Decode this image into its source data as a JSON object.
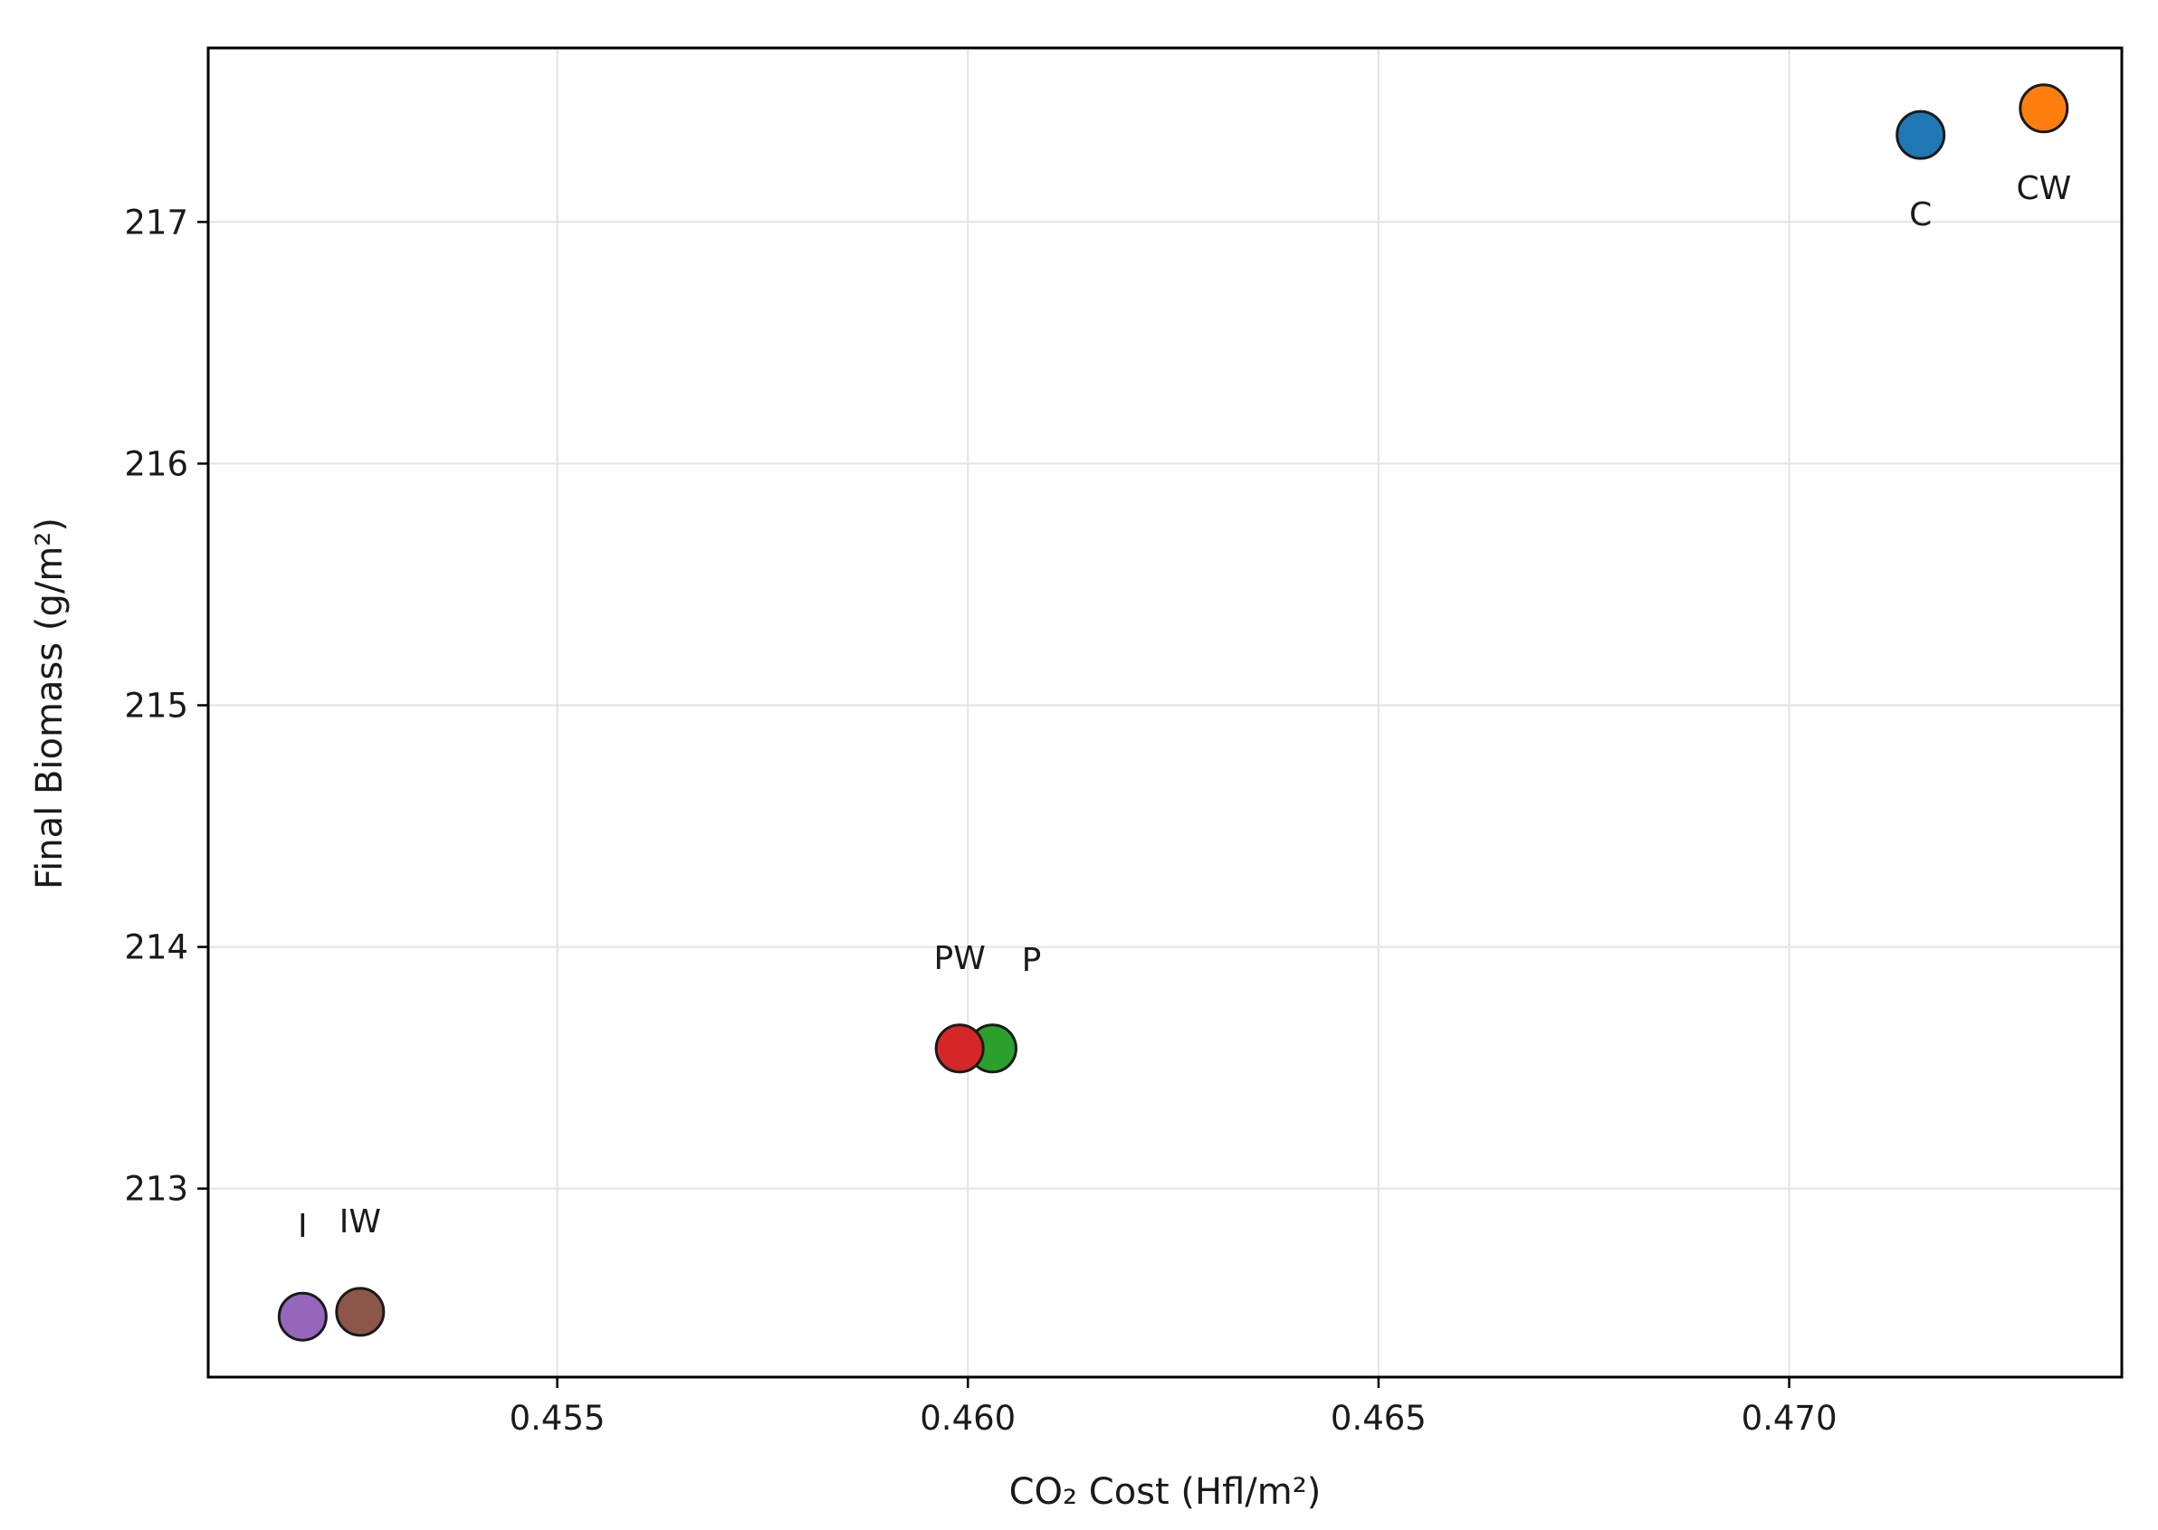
{
  "chart_data": {
    "type": "scatter",
    "xlabel": "CO₂ Cost (Hfl/m²)",
    "ylabel": "Final Biomass (g/m²)",
    "xlim": [
      0.45075,
      0.47405
    ],
    "ylim": [
      212.22,
      217.72
    ],
    "xticks": [
      0.455,
      0.46,
      0.465,
      0.47
    ],
    "xtick_labels": [
      "0.455",
      "0.460",
      "0.465",
      "0.470"
    ],
    "yticks": [
      213,
      214,
      215,
      216,
      217
    ],
    "ytick_labels": [
      "213",
      "214",
      "215",
      "216",
      "217"
    ],
    "grid": true,
    "points": [
      {
        "label": "C",
        "x": 0.4716,
        "y": 217.36,
        "color": "#1f77b4",
        "label_pos": "below"
      },
      {
        "label": "CW",
        "x": 0.4731,
        "y": 217.47,
        "color": "#ff7f0e",
        "label_pos": "below"
      },
      {
        "label": "P",
        "x": 0.4603,
        "y": 213.58,
        "color": "#2ca02c",
        "label_pos": "above-right"
      },
      {
        "label": "PW",
        "x": 0.4599,
        "y": 213.58,
        "color": "#d62728",
        "label_pos": "above"
      },
      {
        "label": "I",
        "x": 0.4519,
        "y": 212.47,
        "color": "#9467bd",
        "label_pos": "above"
      },
      {
        "label": "IW",
        "x": 0.4526,
        "y": 212.49,
        "color": "#8c564b",
        "label_pos": "above"
      }
    ]
  }
}
